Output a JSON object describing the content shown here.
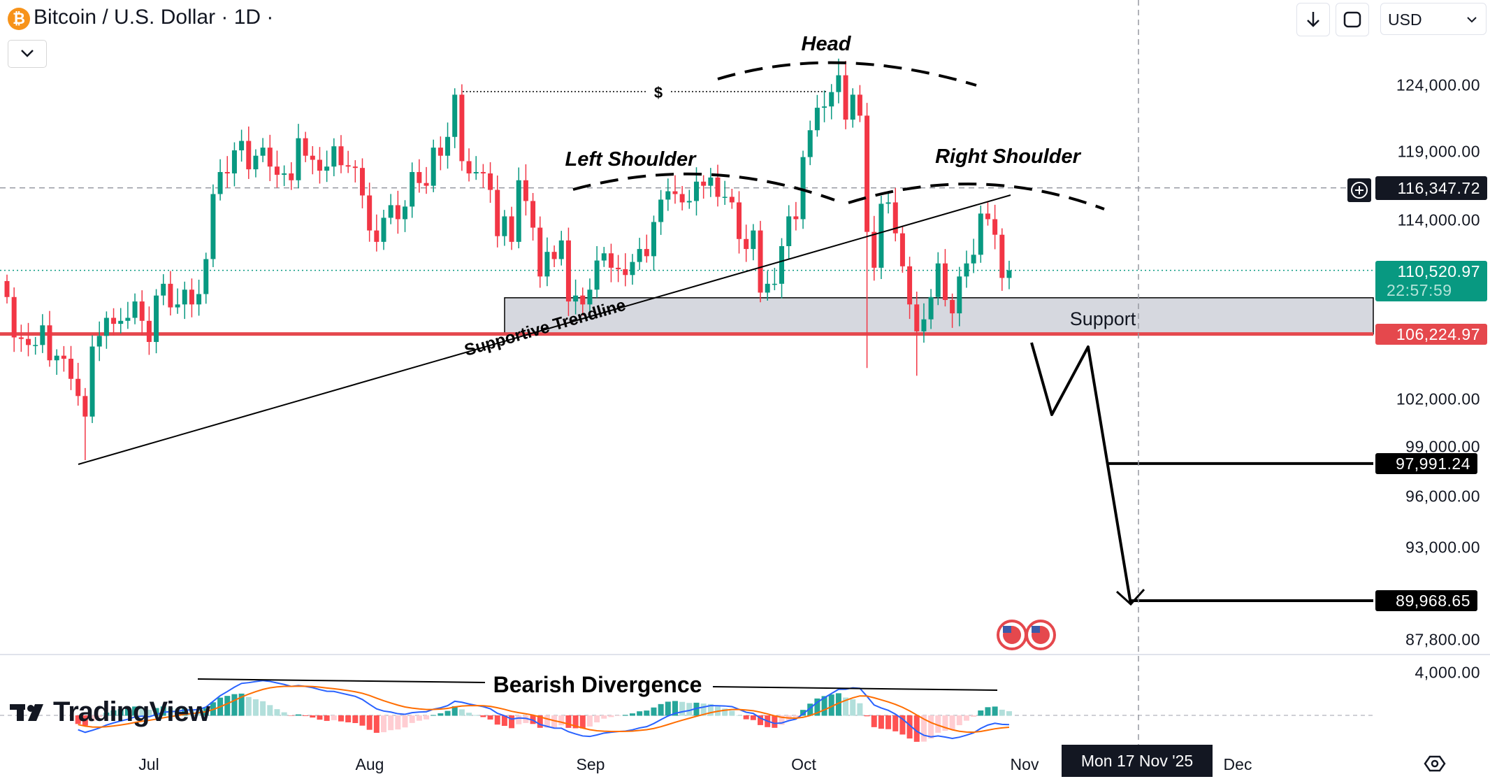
{
  "header": {
    "symbol_icon": "bitcoin-icon",
    "title": "Bitcoin / U.S. Dollar · 1D ·",
    "currency": "USD",
    "buttons": [
      "download-icon",
      "compare-icon"
    ]
  },
  "colors": {
    "up": "#089981",
    "down": "#f23645",
    "support_line": "#e5484d",
    "support_zone": "#d1d4dc",
    "crosshair": "#131722"
  },
  "price_axis": {
    "scale": "log",
    "ticks": [
      {
        "label": "124,000.00",
        "value": 124000
      },
      {
        "label": "119,000.00",
        "value": 119000
      },
      {
        "label": "114,000.00",
        "value": 114000
      },
      {
        "label": "102,000.00",
        "value": 102000
      },
      {
        "label": "99,000.00",
        "value": 99000
      },
      {
        "label": "96,000.00",
        "value": 96000
      },
      {
        "label": "93,000.00",
        "value": 93000
      },
      {
        "label": "87,800.00",
        "value": 87800
      }
    ],
    "crosshair": {
      "label": "116,347.72",
      "value": 116347.72
    },
    "last_price": {
      "label": "110,520.97",
      "value": 110520.97,
      "countdown": "22:57:59"
    },
    "support_level": {
      "label": "106,224.97",
      "value": 106224.97
    },
    "target_1": {
      "label": "97,991.24",
      "value": 97991.24
    },
    "target_2": {
      "label": "89,968.65",
      "value": 89968.65
    },
    "macd_tick": "4,000.00"
  },
  "time_axis": {
    "labels": [
      "Jul",
      "Aug",
      "Sep",
      "Oct",
      "Nov",
      "Dec"
    ],
    "crosshair_date": "Mon 17 Nov '25"
  },
  "annotations": {
    "head": "Head",
    "left_shoulder": "Left Shoulder",
    "right_shoulder": "Right Shoulder",
    "support": "Support",
    "trendline": "Supportive Trendline",
    "dollar_marker": "$",
    "divergence": "Bearish Divergence"
  },
  "branding": {
    "logo": "TradingView"
  },
  "chart_data": {
    "type": "candlestick",
    "title": "Bitcoin / U.S. Dollar · 1D",
    "start_date": "2025-06-11",
    "interval": "1D",
    "closes": [
      108.7,
      106.0,
      105.9,
      105.5,
      105.5,
      106.8,
      104.5,
      104.8,
      104.6,
      103.3,
      102.2,
      100.9,
      105.4,
      106.1,
      107.3,
      106.9,
      107.1,
      107.3,
      108.4,
      107.1,
      105.7,
      108.8,
      109.6,
      108.0,
      108.2,
      109.2,
      108.2,
      108.9,
      111.3,
      115.9,
      117.5,
      117.4,
      119.1,
      119.8,
      117.7,
      118.7,
      119.3,
      117.9,
      117.3,
      117.4,
      116.9,
      120.0,
      118.7,
      118.4,
      117.6,
      117.9,
      119.4,
      118.0,
      117.9,
      117.8,
      115.8,
      113.3,
      112.5,
      114.2,
      115.1,
      114.1,
      115.0,
      117.5,
      116.7,
      116.5,
      119.3,
      118.7,
      120.1,
      123.3,
      118.3,
      117.4,
      117.5,
      117.4,
      116.2,
      112.9,
      114.3,
      112.5,
      116.9,
      115.4,
      113.5,
      110.1,
      111.8,
      111.3,
      112.6,
      108.4,
      108.8,
      108.2,
      109.2,
      111.2,
      111.7,
      110.7,
      110.6,
      110.2,
      111.1,
      112.0,
      111.5,
      113.9,
      115.5,
      116.1,
      115.9,
      115.3,
      115.4,
      116.8,
      116.5,
      117.1,
      115.7,
      115.7,
      115.3,
      112.7,
      112.0,
      113.3,
      109.0,
      109.6,
      109.6,
      112.2,
      114.3,
      114.1,
      118.6,
      120.6,
      122.3,
      122.4,
      123.5,
      124.8,
      121.4,
      123.3,
      121.7,
      113.2,
      110.7,
      115.2,
      115.3,
      113.1,
      110.8,
      108.2,
      106.4,
      107.2,
      108.7,
      111.0,
      108.5,
      107.6,
      110.1,
      111.0,
      111.6,
      114.5,
      114.1,
      113.0,
      110.0,
      110.52
    ],
    "close_unit": "thousand USD",
    "low_overrides": {
      "2025-06-22": 98.2,
      "2025-10-10": 104.0,
      "2025-10-17": 103.5
    },
    "high_overrides": {
      "2025-08-14": 124.1,
      "2025-10-06": 126.1
    },
    "indicator": "MACD"
  }
}
